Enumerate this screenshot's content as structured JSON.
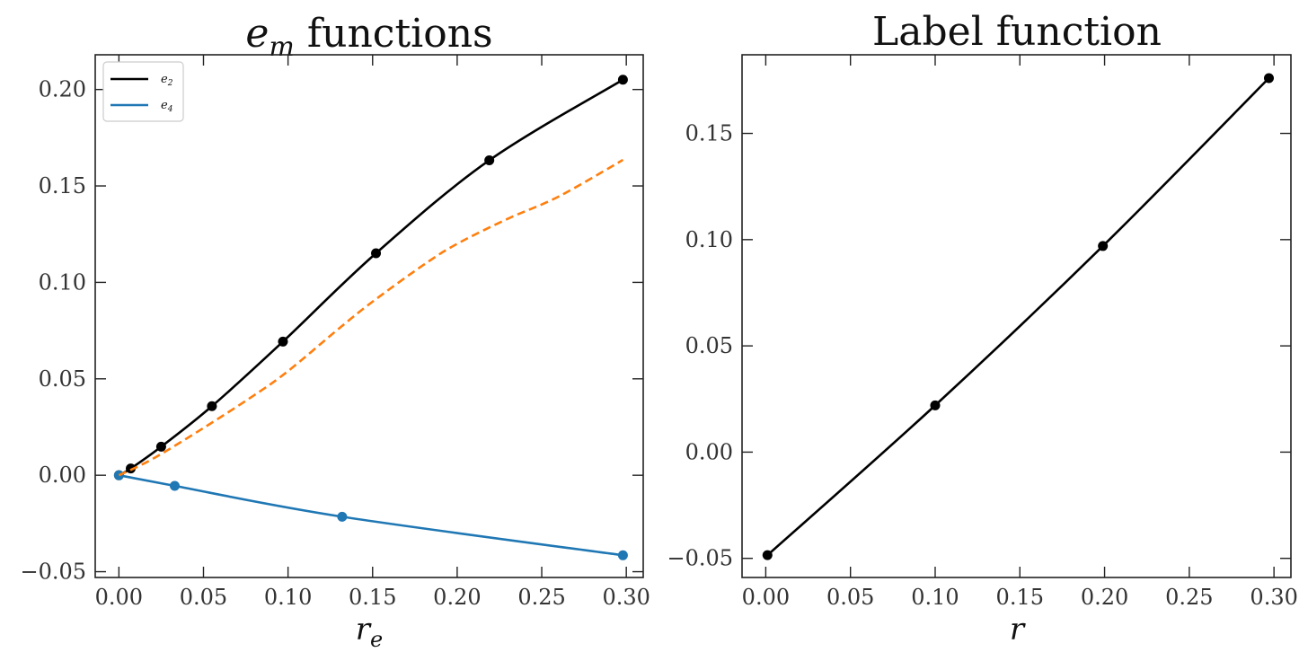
{
  "chart_data": [
    {
      "type": "line",
      "title": "e_m functions",
      "xlabel": "r_e",
      "ylabel": "",
      "xlim": [
        -0.014,
        0.31
      ],
      "ylim": [
        -0.053,
        0.218
      ],
      "xticks": [
        0.0,
        0.05,
        0.1,
        0.15,
        0.2,
        0.25,
        0.3
      ],
      "xtick_labels": [
        "0.00",
        "0.05",
        "0.10",
        "0.15",
        "0.20",
        "0.25",
        "0.30"
      ],
      "yticks": [
        -0.05,
        0.0,
        0.05,
        0.1,
        0.15,
        0.2
      ],
      "ytick_labels": [
        "−0.05",
        "0.00",
        "0.05",
        "0.10",
        "0.15",
        "0.20"
      ],
      "grid": false,
      "legend": "upper-left",
      "series": [
        {
          "name": "e_2",
          "color": "#000000",
          "dashed": false,
          "x": [
            0.0,
            0.007,
            0.025,
            0.055,
            0.097,
            0.152,
            0.219,
            0.298
          ],
          "y": [
            0.0,
            0.0035,
            0.0148,
            0.0358,
            0.0693,
            0.1151,
            0.1633,
            0.2051
          ],
          "markers": true,
          "legend": true
        },
        {
          "name": "e_4",
          "color": "#1f77b4",
          "dashed": false,
          "x": [
            0.0,
            0.033,
            0.132,
            0.298
          ],
          "y": [
            0.0,
            -0.0055,
            -0.0215,
            -0.0415
          ],
          "markers": true,
          "legend": true
        },
        {
          "name": "",
          "color": "#ff7f0e",
          "dashed": true,
          "x": [
            0.0,
            0.02,
            0.05,
            0.08,
            0.1,
            0.13,
            0.15,
            0.18,
            0.2,
            0.23,
            0.26,
            0.298
          ],
          "y": [
            0.0,
            0.0085,
            0.0245,
            0.0415,
            0.054,
            0.076,
            0.09,
            0.109,
            0.12,
            0.133,
            0.1445,
            0.1635
          ],
          "markers": false,
          "legend": false
        }
      ]
    },
    {
      "type": "line",
      "title": "Label function",
      "xlabel": "r",
      "ylabel": "",
      "xlim": [
        -0.014,
        0.31
      ],
      "ylim": [
        -0.059,
        0.187
      ],
      "xticks": [
        0.0,
        0.05,
        0.1,
        0.15,
        0.2,
        0.25,
        0.3
      ],
      "xtick_labels": [
        "0.00",
        "0.05",
        "0.10",
        "0.15",
        "0.20",
        "0.25",
        "0.30"
      ],
      "yticks": [
        -0.05,
        0.0,
        0.05,
        0.1,
        0.15
      ],
      "ytick_labels": [
        "−0.05",
        "0.00",
        "0.05",
        "0.10",
        "0.15"
      ],
      "grid": false,
      "legend": "none",
      "series": [
        {
          "name": "",
          "color": "#000000",
          "dashed": false,
          "x": [
            0.001,
            0.1,
            0.199,
            0.297
          ],
          "y": [
            -0.0485,
            0.022,
            0.097,
            0.176
          ],
          "markers": true,
          "legend": false
        }
      ]
    }
  ]
}
